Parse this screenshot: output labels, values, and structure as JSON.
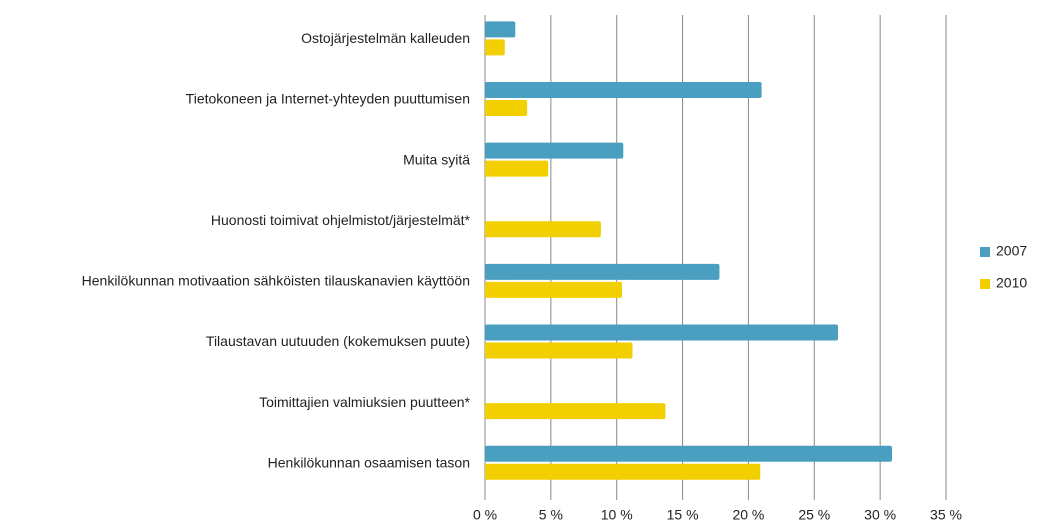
{
  "chart_data": {
    "type": "bar",
    "orientation": "horizontal",
    "categories": [
      "Ostojärjestelmän kalleuden",
      "Tietokoneen ja Internet-yhteyden puuttumisen",
      "Muita syitä",
      "Huonosti toimivat ohjelmistot/järjestelmät*",
      "Henkilökunnan motivaation sähköisten tilauskanavien käyttöön",
      "Tilaustavan uutuuden (kokemuksen puute)",
      "Toimittajien valmiuksien puutteen*",
      "Henkilökunnan osaamisen tason"
    ],
    "series": [
      {
        "name": "2007",
        "color": "#4a9fc0",
        "values": [
          2.3,
          21.0,
          10.5,
          null,
          17.8,
          26.8,
          null,
          30.9
        ]
      },
      {
        "name": "2010",
        "color": "#f2cf00",
        "values": [
          1.5,
          3.2,
          4.8,
          8.8,
          10.4,
          11.2,
          13.7,
          20.9
        ]
      }
    ],
    "xlim": [
      0,
      35
    ],
    "xticks": [
      {
        "value": 0,
        "label": "0 %"
      },
      {
        "value": 5,
        "label": "5 %"
      },
      {
        "value": 10,
        "label": "10 %"
      },
      {
        "value": 15,
        "label": "15 %"
      },
      {
        "value": 20,
        "label": "20 %"
      },
      {
        "value": 25,
        "label": "25 %"
      },
      {
        "value": 30,
        "label": "30 %"
      },
      {
        "value": 35,
        "label": "35 %"
      }
    ],
    "grid": true,
    "legend": "right"
  }
}
